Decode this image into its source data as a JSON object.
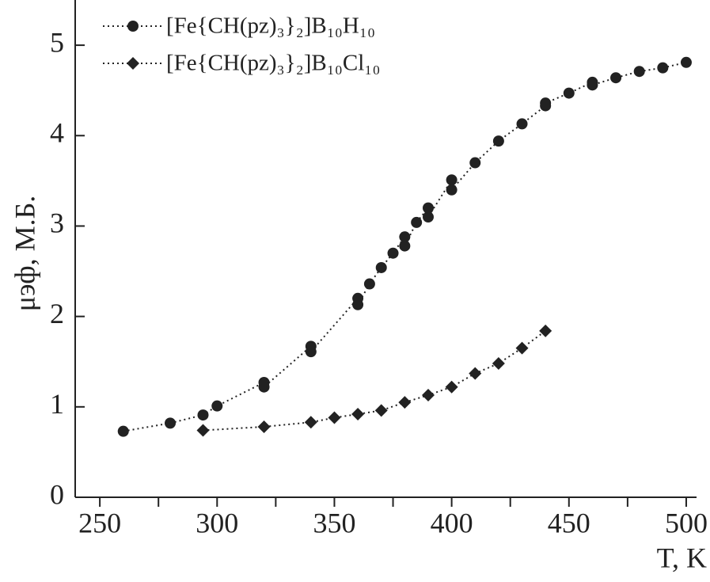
{
  "chart_data": {
    "type": "scatter",
    "x_label": "T, K",
    "y_label": "μэф, М.Б.",
    "xlim": [
      239.5,
      504.4
    ],
    "ylim": [
      0,
      5.5
    ],
    "xticks": [
      250,
      300,
      350,
      400,
      450,
      500
    ],
    "xminorticks": [
      275,
      325,
      375,
      425,
      475
    ],
    "yticks": [
      0,
      1,
      2,
      3,
      4,
      5
    ],
    "legend": "upper left",
    "series": [
      {
        "name": "[Fe{CH(pz)₃}₂]B₁₀H₁₀",
        "color": "#222222",
        "marker": "circle",
        "x": [
          260,
          280,
          294,
          300,
          320,
          320,
          340,
          340,
          360,
          360,
          365,
          370,
          375,
          380,
          380,
          385,
          390,
          390,
          400,
          400,
          410,
          420,
          430,
          440,
          440,
          450,
          460,
          460,
          470,
          480,
          490,
          500
        ],
        "values": [
          0.73,
          0.82,
          0.91,
          1.01,
          1.27,
          1.22,
          1.67,
          1.61,
          2.2,
          2.13,
          2.36,
          2.54,
          2.7,
          2.88,
          2.78,
          3.04,
          3.2,
          3.1,
          3.51,
          3.4,
          3.7,
          3.94,
          4.13,
          4.33,
          4.36,
          4.47,
          4.59,
          4.56,
          4.64,
          4.71,
          4.75,
          4.81
        ]
      },
      {
        "name": "[Fe{CH(pz)₃}₂]B₁₀Cl₁₀",
        "color": "#222222",
        "marker": "diamond",
        "x": [
          294,
          320,
          340,
          350,
          360,
          370,
          380,
          390,
          400,
          410,
          420,
          430,
          440
        ],
        "values": [
          0.74,
          0.78,
          0.83,
          0.88,
          0.92,
          0.96,
          1.05,
          1.13,
          1.22,
          1.37,
          1.48,
          1.65,
          1.84
        ]
      }
    ]
  }
}
